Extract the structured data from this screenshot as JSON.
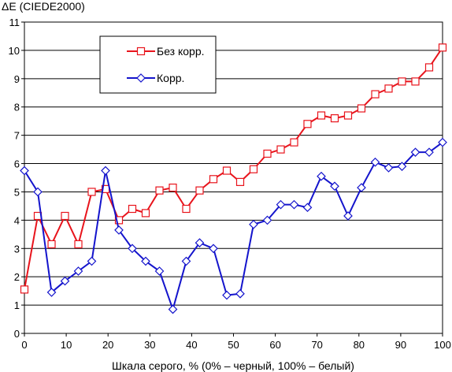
{
  "chart_data": {
    "type": "line",
    "title": "",
    "ylabel": "ΔE (CIEDE2000)",
    "xlabel": "Шкала серого, % (0% – черный, 100% – белый)",
    "xlim": [
      0,
      100
    ],
    "ylim": [
      0,
      11
    ],
    "xticks": [
      0,
      10,
      20,
      30,
      40,
      50,
      60,
      70,
      80,
      90,
      100
    ],
    "yticks": [
      0,
      1,
      2,
      3,
      4,
      5,
      6,
      7,
      8,
      9,
      10,
      11
    ],
    "grid": "horizontal",
    "legend_position": "top-left",
    "x": [
      0,
      3.2,
      6.5,
      9.7,
      12.9,
      16.1,
      19.4,
      22.6,
      25.8,
      29.0,
      32.3,
      35.5,
      38.7,
      41.9,
      45.2,
      48.4,
      51.6,
      54.8,
      58.1,
      61.3,
      64.5,
      67.7,
      71.0,
      74.2,
      77.4,
      80.6,
      83.9,
      87.1,
      90.3,
      93.5,
      96.8,
      100
    ],
    "series": [
      {
        "name": "Без корр.",
        "color": "#e8141c",
        "marker": "square",
        "values": [
          1.55,
          4.15,
          3.15,
          4.15,
          3.15,
          5.0,
          5.1,
          4.0,
          4.4,
          4.25,
          5.05,
          5.15,
          4.4,
          5.05,
          5.45,
          5.75,
          5.35,
          5.8,
          6.35,
          6.5,
          6.75,
          7.4,
          7.7,
          7.6,
          7.7,
          7.95,
          8.45,
          8.65,
          8.9,
          8.9,
          9.4,
          10.1
        ]
      },
      {
        "name": "Корр.",
        "color": "#1414cc",
        "marker": "diamond",
        "values": [
          5.75,
          5.0,
          1.45,
          1.85,
          2.2,
          2.55,
          5.75,
          3.65,
          3.0,
          2.55,
          2.2,
          0.85,
          2.55,
          3.2,
          3.0,
          1.35,
          1.4,
          3.85,
          4.0,
          4.55,
          4.55,
          4.45,
          5.55,
          5.2,
          4.15,
          5.15,
          6.05,
          5.85,
          5.9,
          6.4,
          6.4,
          6.75
        ]
      }
    ]
  }
}
